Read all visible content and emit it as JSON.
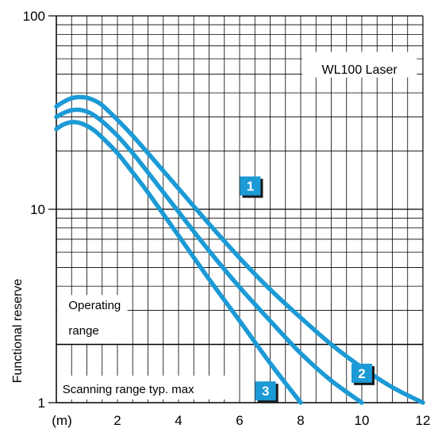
{
  "chart_data": {
    "type": "line",
    "title": "",
    "xlabel": "(m)",
    "ylabel": "Functional reserve",
    "x_scale": "linear",
    "y_scale": "log",
    "xlim": [
      0,
      12
    ],
    "ylim": [
      1,
      100
    ],
    "x_ticks": [
      2,
      4,
      6,
      8,
      10,
      12
    ],
    "y_ticks": [
      1,
      10,
      100
    ],
    "grid": true,
    "legend_box": "WL100 Laser",
    "annotations": {
      "operating_range": "Operating range",
      "operating_threshold": 2,
      "scanning_range": "Scanning range typ. max"
    },
    "series": [
      {
        "name": "1",
        "color": "#1b9ad6",
        "x": [
          0,
          0.25,
          0.5,
          0.75,
          1.0,
          1.25,
          1.5,
          2,
          2.5,
          3,
          3.5,
          4,
          5,
          6,
          7,
          8,
          9,
          10,
          11,
          12
        ],
        "y": [
          34,
          36,
          37.5,
          38,
          37.7,
          36.5,
          34.5,
          29,
          24,
          19.5,
          15.8,
          12.8,
          8.4,
          5.6,
          3.85,
          2.75,
          2.0,
          1.52,
          1.2,
          1.0
        ]
      },
      {
        "name": "2",
        "color": "#1b9ad6",
        "x": [
          0,
          0.25,
          0.5,
          0.75,
          1.0,
          1.25,
          1.5,
          2,
          2.5,
          3,
          4,
          5,
          6,
          7,
          8,
          9,
          10
        ],
        "y": [
          30,
          31.5,
          32.5,
          32.7,
          32,
          30.5,
          28.5,
          24,
          19.5,
          15.5,
          9.7,
          6.1,
          3.95,
          2.65,
          1.8,
          1.3,
          1.0
        ]
      },
      {
        "name": "3",
        "color": "#1b9ad6",
        "x": [
          0,
          0.25,
          0.5,
          0.75,
          1.0,
          1.25,
          1.5,
          2,
          2.5,
          3,
          4,
          5,
          6,
          7,
          8
        ],
        "y": [
          26,
          27.5,
          28.2,
          28,
          27,
          25.5,
          23.5,
          19.5,
          15.5,
          12.2,
          7.3,
          4.35,
          2.65,
          1.6,
          1.0
        ]
      }
    ]
  }
}
